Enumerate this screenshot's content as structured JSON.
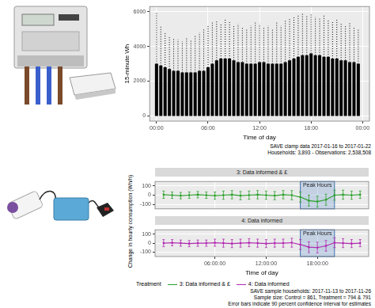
{
  "chart_data": [
    {
      "type": "scatter",
      "xlabel": "Time of day",
      "ylabel": "15-minute Wh",
      "caption": [
        "SAVE clamp data 2017-01-16 to 2017-01-22",
        "Households: 3,893 - Observations: 2,538,508"
      ],
      "x": [
        0,
        0.5,
        1,
        1.5,
        2,
        2.5,
        3,
        3.5,
        4,
        4.5,
        5,
        5.5,
        6,
        6.5,
        7,
        7.5,
        8,
        8.5,
        9,
        9.5,
        10,
        10.5,
        11,
        11.5,
        12,
        12.5,
        13,
        13.5,
        14,
        14.5,
        15,
        15.5,
        16,
        16.5,
        17,
        17.5,
        18,
        18.5,
        19,
        19.5,
        20,
        20.5,
        21,
        21.5,
        22,
        22.5,
        23,
        23.5
      ],
      "values": [
        [
          0,
          3000
        ],
        [
          0,
          2900
        ],
        [
          0,
          2800
        ],
        [
          0,
          2700
        ],
        [
          0,
          2600
        ],
        [
          0,
          2600
        ],
        [
          0,
          2500
        ],
        [
          0,
          2500
        ],
        [
          0,
          2500
        ],
        [
          0,
          2500
        ],
        [
          0,
          2600
        ],
        [
          0,
          2600
        ],
        [
          0,
          2800
        ],
        [
          0,
          3000
        ],
        [
          0,
          3200
        ],
        [
          0,
          3300
        ],
        [
          0,
          3300
        ],
        [
          0,
          3300
        ],
        [
          0,
          3200
        ],
        [
          0,
          3100
        ],
        [
          0,
          3100
        ],
        [
          0,
          3000
        ],
        [
          0,
          3000
        ],
        [
          0,
          3000
        ],
        [
          0,
          3100
        ],
        [
          0,
          3100
        ],
        [
          0,
          3000
        ],
        [
          0,
          3000
        ],
        [
          0,
          3000
        ],
        [
          0,
          3000
        ],
        [
          0,
          3100
        ],
        [
          0,
          3200
        ],
        [
          0,
          3300
        ],
        [
          0,
          3400
        ],
        [
          0,
          3500
        ],
        [
          0,
          3500
        ],
        [
          0,
          3600
        ],
        [
          0,
          3500
        ],
        [
          0,
          3500
        ],
        [
          0,
          3400
        ],
        [
          0,
          3400
        ],
        [
          0,
          3300
        ],
        [
          0,
          3300
        ],
        [
          0,
          3200
        ],
        [
          0,
          3200
        ],
        [
          0,
          3100
        ],
        [
          0,
          3100
        ],
        [
          0,
          3000
        ]
      ],
      "sparse_max": [
        6000,
        5200,
        4800,
        4600,
        4500,
        4400,
        4300,
        4500,
        4400,
        4600,
        4800,
        5000,
        5200,
        5400,
        5500,
        5300,
        5600,
        5400,
        5200,
        5300,
        5100,
        5000,
        5200,
        5400,
        5300,
        5100,
        5200,
        5000,
        5400,
        5200,
        5500,
        5600,
        5700,
        5800,
        5900,
        5800,
        5900,
        5700,
        5600,
        5800,
        5500,
        5400,
        5600,
        5300,
        5200,
        5400,
        5100,
        5000
      ],
      "color": "#000000",
      "xlim": [
        -0.8,
        24.8
      ],
      "ylim": [
        -300,
        6300
      ],
      "xticks": [
        {
          "value": 0,
          "label": "00:00"
        },
        {
          "value": 6,
          "label": "06:00"
        },
        {
          "value": 12,
          "label": "12:00"
        },
        {
          "value": 18,
          "label": "18:00"
        },
        {
          "value": 24,
          "label": "00:00"
        }
      ],
      "yticks": [
        0,
        2000,
        4000,
        6000
      ],
      "grid": true
    },
    {
      "type": "line",
      "title": "3: Data informed & £",
      "ylabel": "Change in hourly consumption (Wh/h)",
      "x": [
        0,
        1,
        2,
        3,
        4,
        5,
        6,
        7,
        8,
        9,
        10,
        11,
        12,
        13,
        14,
        15,
        16,
        17,
        18,
        19,
        20,
        21,
        22,
        23
      ],
      "series": [
        {
          "name": "3: Data informed & £",
          "color": "#2ca02c",
          "values": [
            5,
            0,
            -5,
            0,
            5,
            0,
            -5,
            0,
            5,
            -5,
            0,
            5,
            0,
            -5,
            5,
            0,
            -20,
            -60,
            -70,
            -50,
            0,
            5,
            0,
            5
          ],
          "errors": [
            40,
            35,
            35,
            35,
            35,
            35,
            40,
            45,
            45,
            45,
            45,
            45,
            45,
            45,
            45,
            50,
            55,
            60,
            60,
            60,
            55,
            50,
            45,
            40
          ]
        }
      ],
      "annotations": [
        {
          "label": "Peak Hours",
          "x0": 16,
          "x1": 20
        }
      ],
      "xlim": [
        -1,
        24
      ],
      "ylim": [
        -150,
        150
      ],
      "xticks": [
        {
          "value": 6,
          "label": "06:00:00"
        },
        {
          "value": 12,
          "label": "12:00:00"
        },
        {
          "value": 18,
          "label": "18:00:00"
        }
      ],
      "yticks": [
        -100,
        0,
        100
      ],
      "grid": true,
      "tick_labels": "y"
    },
    {
      "type": "line",
      "title": "4: Data informed",
      "xlabel": "Time of day",
      "x": [
        0,
        1,
        2,
        3,
        4,
        5,
        6,
        7,
        8,
        9,
        10,
        11,
        12,
        13,
        14,
        15,
        16,
        17,
        18,
        19,
        20,
        21,
        22,
        23
      ],
      "series": [
        {
          "name": "4: Data informed",
          "color": "#b02ab0",
          "values": [
            0,
            5,
            0,
            -5,
            0,
            0,
            5,
            0,
            -5,
            0,
            5,
            0,
            -5,
            0,
            0,
            5,
            -15,
            -45,
            -50,
            -30,
            5,
            0,
            -5,
            0
          ],
          "errors": [
            40,
            35,
            35,
            35,
            35,
            35,
            40,
            45,
            45,
            45,
            45,
            45,
            45,
            45,
            45,
            50,
            55,
            60,
            60,
            60,
            55,
            50,
            45,
            40
          ]
        }
      ],
      "annotations": [
        {
          "label": "Peak Hours",
          "x0": 16,
          "x1": 20
        }
      ],
      "xlim": [
        -1,
        24
      ],
      "ylim": [
        -150,
        150
      ],
      "xticks": [
        {
          "value": 6,
          "label": "06:00:00"
        },
        {
          "value": 12,
          "label": "12:00:00"
        },
        {
          "value": 18,
          "label": "18:00:00"
        }
      ],
      "yticks": [
        -100,
        0,
        100
      ],
      "grid": true,
      "legend": "bottom",
      "legend_title": "Treatment",
      "caption": [
        "SAVE sample households: 2017-11-13 to 2017-11-26",
        "Sample size: Control = 861, Treatment = 794 & 791",
        "Error bars indicate 90 percent confidence interval for estimates"
      ]
    }
  ]
}
